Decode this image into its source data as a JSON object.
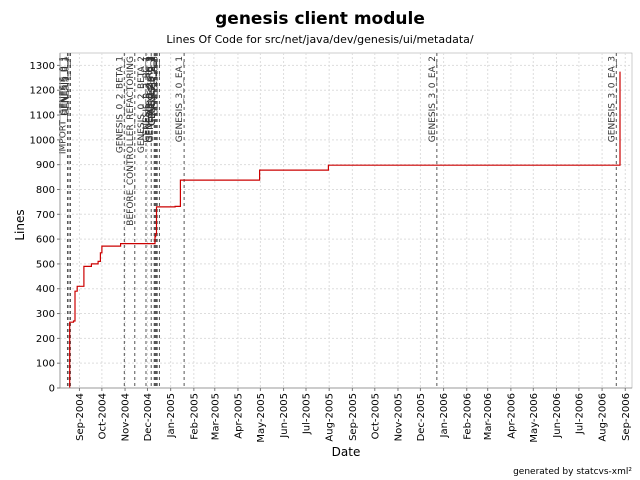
{
  "chart_data": {
    "type": "line",
    "title": "genesis client module",
    "subtitle": "Lines Of Code for src/net/java/dev/genesis/ui/metadata/",
    "xlabel": "Date",
    "ylabel": "Lines",
    "footer": "generated by statcvs-xml²",
    "grid": true,
    "ylim": [
      0,
      1350
    ],
    "xlim": [
      "2004-08-06",
      "2006-09-10"
    ],
    "y_ticks": [
      0,
      100,
      200,
      300,
      400,
      500,
      600,
      700,
      800,
      900,
      1000,
      1100,
      1200,
      1300
    ],
    "x_ticks": [
      {
        "date": "2004-09-01",
        "label": "Sep-2004"
      },
      {
        "date": "2004-10-01",
        "label": "Oct-2004"
      },
      {
        "date": "2004-11-01",
        "label": "Nov-2004"
      },
      {
        "date": "2004-12-01",
        "label": "Dec-2004"
      },
      {
        "date": "2005-01-01",
        "label": "Jan-2005"
      },
      {
        "date": "2005-02-01",
        "label": "Feb-2005"
      },
      {
        "date": "2005-03-01",
        "label": "Mar-2005"
      },
      {
        "date": "2005-04-01",
        "label": "Apr-2005"
      },
      {
        "date": "2005-05-01",
        "label": "May-2005"
      },
      {
        "date": "2005-06-01",
        "label": "Jun-2005"
      },
      {
        "date": "2005-07-01",
        "label": "Jul-2005"
      },
      {
        "date": "2005-08-01",
        "label": "Aug-2005"
      },
      {
        "date": "2005-09-01",
        "label": "Sep-2005"
      },
      {
        "date": "2005-10-01",
        "label": "Oct-2005"
      },
      {
        "date": "2005-11-01",
        "label": "Nov-2005"
      },
      {
        "date": "2005-12-01",
        "label": "Dec-2005"
      },
      {
        "date": "2006-01-01",
        "label": "Jan-2006"
      },
      {
        "date": "2006-02-01",
        "label": "Feb-2006"
      },
      {
        "date": "2006-03-01",
        "label": "Mar-2006"
      },
      {
        "date": "2006-04-01",
        "label": "Apr-2006"
      },
      {
        "date": "2006-05-01",
        "label": "May-2006"
      },
      {
        "date": "2006-06-01",
        "label": "Jun-2006"
      },
      {
        "date": "2006-07-01",
        "label": "Jul-2006"
      },
      {
        "date": "2006-08-01",
        "label": "Aug-2006"
      },
      {
        "date": "2006-09-01",
        "label": "Sep-2006"
      }
    ],
    "series": [
      {
        "color": "#cc0000",
        "points": [
          [
            "2004-08-19",
            0
          ],
          [
            "2004-08-19",
            265
          ],
          [
            "2004-08-24",
            265
          ],
          [
            "2004-08-24",
            270
          ],
          [
            "2004-08-26",
            270
          ],
          [
            "2004-08-26",
            390
          ],
          [
            "2004-08-29",
            390
          ],
          [
            "2004-08-29",
            410
          ],
          [
            "2004-09-07",
            410
          ],
          [
            "2004-09-07",
            490
          ],
          [
            "2004-09-17",
            490
          ],
          [
            "2004-09-17",
            500
          ],
          [
            "2004-09-26",
            500
          ],
          [
            "2004-09-26",
            510
          ],
          [
            "2004-09-29",
            510
          ],
          [
            "2004-09-29",
            545
          ],
          [
            "2004-10-01",
            545
          ],
          [
            "2004-10-01",
            572
          ],
          [
            "2004-10-26",
            572
          ],
          [
            "2004-10-26",
            582
          ],
          [
            "2004-12-11",
            582
          ],
          [
            "2004-12-11",
            610
          ],
          [
            "2004-12-12",
            610
          ],
          [
            "2004-12-12",
            622
          ],
          [
            "2004-12-13",
            622
          ],
          [
            "2004-12-13",
            730
          ],
          [
            "2005-01-07",
            730
          ],
          [
            "2005-01-07",
            732
          ],
          [
            "2005-01-14",
            732
          ],
          [
            "2005-01-14",
            838
          ],
          [
            "2005-04-30",
            838
          ],
          [
            "2005-04-30",
            878
          ],
          [
            "2005-07-31",
            878
          ],
          [
            "2005-07-31",
            898
          ],
          [
            "2006-08-25",
            898
          ],
          [
            "2006-08-25",
            1275
          ]
        ]
      }
    ],
    "markers": [
      {
        "date": "2004-08-16",
        "label": "IMPORT_GENESIS_0_1"
      },
      {
        "date": "2004-08-18",
        "label": "GENESIS_0_1"
      },
      {
        "date": "2004-08-20",
        "label": "GENESIS_0_1"
      },
      {
        "date": "2004-10-31",
        "label": "GENESIS_0_2_BETA_1"
      },
      {
        "date": "2004-11-14",
        "label": "BEFORE_CONTROLLER_REFACTORING"
      },
      {
        "date": "2004-11-29",
        "label": "GENESIS_0_2_BETA_2"
      },
      {
        "date": "2004-12-06",
        "label": "GENESIS_0_2_RC_1"
      },
      {
        "date": "2004-12-10",
        "label": "GENESIS_0_2_RC_2"
      },
      {
        "date": "2004-12-11",
        "label": "GENESIS_0_2_RC_3"
      },
      {
        "date": "2004-12-12",
        "label": "GENESIS_0_2"
      },
      {
        "date": "2004-12-13",
        "label": "GENESIS_0_2_1"
      },
      {
        "date": "2004-12-14",
        "label": "GENESIS_0_2_2"
      },
      {
        "date": "2004-12-17",
        "label": "GENESIS_0_3"
      },
      {
        "date": "2005-01-19",
        "label": "GENESIS_3_0_EA_1"
      },
      {
        "date": "2005-12-23",
        "label": "GENESIS_3_0_EA_2"
      },
      {
        "date": "2006-08-20",
        "label": "GENESIS_3_0_EA_3"
      }
    ]
  }
}
